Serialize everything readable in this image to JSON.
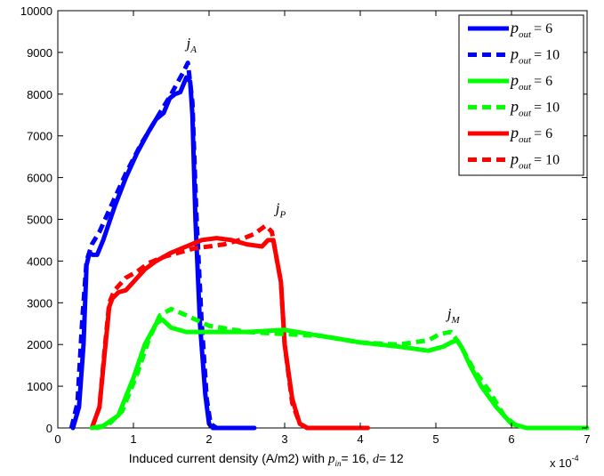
{
  "chart_data": {
    "type": "line",
    "xlabel": "Induced current density (A/m2) with",
    "xlabel_params": {
      "p_symbol": "p",
      "p_sub": "in",
      "p_value": "16",
      "d_symbol": "d",
      "d_value": "12"
    },
    "x_multiplier": "x 10",
    "x_multiplier_exp": "-4",
    "ylabel": "",
    "xlim": [
      0,
      7
    ],
    "ylim": [
      0,
      10000
    ],
    "x_ticks": [
      "0",
      "1",
      "2",
      "3",
      "4",
      "5",
      "6",
      "7"
    ],
    "y_ticks": [
      "0",
      "1000",
      "2000",
      "3000",
      "4000",
      "5000",
      "6000",
      "7000",
      "8000",
      "9000",
      "10000"
    ],
    "grid": false,
    "legend_position": "top-right",
    "annotations": [
      {
        "symbol": "j",
        "sub": "A",
        "x": 1.7,
        "y": 9100
      },
      {
        "symbol": "j",
        "sub": "P",
        "x": 2.88,
        "y": 5150
      },
      {
        "symbol": "j",
        "sub": "M",
        "x": 5.15,
        "y": 2620
      }
    ],
    "series": [
      {
        "name": "p_out = 6",
        "label_symbol": "p",
        "label_sub": "out",
        "label_value": "= 6",
        "color": "#0000ff",
        "style": "solid",
        "x": [
          0.2,
          0.28,
          0.34,
          0.38,
          0.42,
          0.46,
          0.52,
          0.6,
          0.75,
          0.9,
          1.05,
          1.2,
          1.3,
          1.4,
          1.48,
          1.55,
          1.62,
          1.7,
          1.75,
          1.78,
          1.82,
          1.88,
          1.95,
          2.0,
          2.05,
          2.2,
          2.6
        ],
        "y": [
          0,
          500,
          2000,
          3900,
          4200,
          4150,
          4150,
          4500,
          5300,
          6000,
          6600,
          7100,
          7400,
          7550,
          7900,
          8000,
          8050,
          8400,
          8300,
          7500,
          5000,
          2500,
          800,
          100,
          0,
          0,
          0
        ]
      },
      {
        "name": "p_out = 10",
        "label_symbol": "p",
        "label_sub": "out",
        "label_value": "= 10",
        "color": "#0000ff",
        "style": "dashed",
        "x": [
          0.18,
          0.26,
          0.32,
          0.38,
          0.45,
          0.55,
          0.7,
          0.9,
          1.1,
          1.3,
          1.5,
          1.65,
          1.72,
          1.78,
          1.83,
          1.9,
          1.97,
          2.02,
          2.1
        ],
        "y": [
          0,
          600,
          2500,
          4000,
          4400,
          4700,
          5300,
          6100,
          6800,
          7400,
          8000,
          8500,
          8750,
          7800,
          5200,
          2600,
          700,
          100,
          0
        ]
      },
      {
        "name": "p_out = 6",
        "label_symbol": "p",
        "label_sub": "out",
        "label_value": "= 6",
        "color": "#00ff00",
        "style": "solid",
        "x": [
          0.45,
          0.6,
          0.8,
          1.0,
          1.15,
          1.3,
          1.38,
          1.5,
          1.7,
          2.0,
          2.5,
          3.0,
          3.5,
          4.0,
          4.5,
          4.9,
          5.1,
          5.2,
          5.28,
          5.35,
          5.45,
          5.6,
          5.8,
          6.0,
          6.2,
          7.0
        ],
        "y": [
          0,
          50,
          300,
          1200,
          2000,
          2500,
          2600,
          2400,
          2300,
          2300,
          2300,
          2350,
          2200,
          2050,
          1950,
          1850,
          1950,
          2050,
          2100,
          1900,
          1500,
          1000,
          500,
          100,
          0,
          0
        ]
      },
      {
        "name": "p_out = 10",
        "label_symbol": "p",
        "label_sub": "out",
        "label_value": "= 10",
        "color": "#00ff00",
        "style": "dashed",
        "x": [
          0.5,
          0.65,
          0.85,
          1.05,
          1.2,
          1.35,
          1.5,
          1.7,
          2.0,
          2.5,
          3.0,
          3.5,
          4.0,
          4.5,
          4.9,
          5.05,
          5.2,
          5.3,
          5.38,
          5.5,
          5.7,
          5.9,
          6.1
        ],
        "y": [
          0,
          50,
          400,
          1300,
          2100,
          2700,
          2850,
          2700,
          2450,
          2300,
          2250,
          2200,
          2050,
          2000,
          2100,
          2250,
          2300,
          2050,
          1800,
          1400,
          900,
          300,
          0
        ]
      },
      {
        "name": "p_out = 6",
        "label_symbol": "p",
        "label_sub": "out",
        "label_value": "= 6",
        "color": "#ff0000",
        "style": "solid",
        "x": [
          0.45,
          0.55,
          0.62,
          0.68,
          0.72,
          0.8,
          0.9,
          1.0,
          1.15,
          1.3,
          1.5,
          1.7,
          1.9,
          2.1,
          2.3,
          2.5,
          2.7,
          2.78,
          2.85,
          2.9,
          2.95,
          3.0,
          3.1,
          3.2,
          3.3,
          4.1
        ],
        "y": [
          0,
          500,
          1800,
          2900,
          3100,
          3250,
          3300,
          3500,
          3800,
          4000,
          4200,
          4350,
          4500,
          4550,
          4500,
          4400,
          4350,
          4500,
          4500,
          4000,
          3500,
          2000,
          700,
          100,
          0,
          0
        ]
      },
      {
        "name": "p_out = 10",
        "label_symbol": "p",
        "label_sub": "out",
        "label_value": "= 10",
        "color": "#ff0000",
        "style": "dashed",
        "x": [
          0.45,
          0.55,
          0.62,
          0.68,
          0.75,
          0.9,
          1.05,
          1.2,
          1.4,
          1.6,
          1.8,
          2.0,
          2.2,
          2.4,
          2.6,
          2.75,
          2.83,
          2.9,
          2.95,
          3.0,
          3.1,
          3.2,
          3.3
        ],
        "y": [
          0,
          500,
          1900,
          3000,
          3300,
          3600,
          3750,
          3950,
          4100,
          4200,
          4300,
          4350,
          4400,
          4500,
          4650,
          4850,
          4700,
          4000,
          3500,
          2000,
          600,
          100,
          0
        ]
      }
    ]
  }
}
